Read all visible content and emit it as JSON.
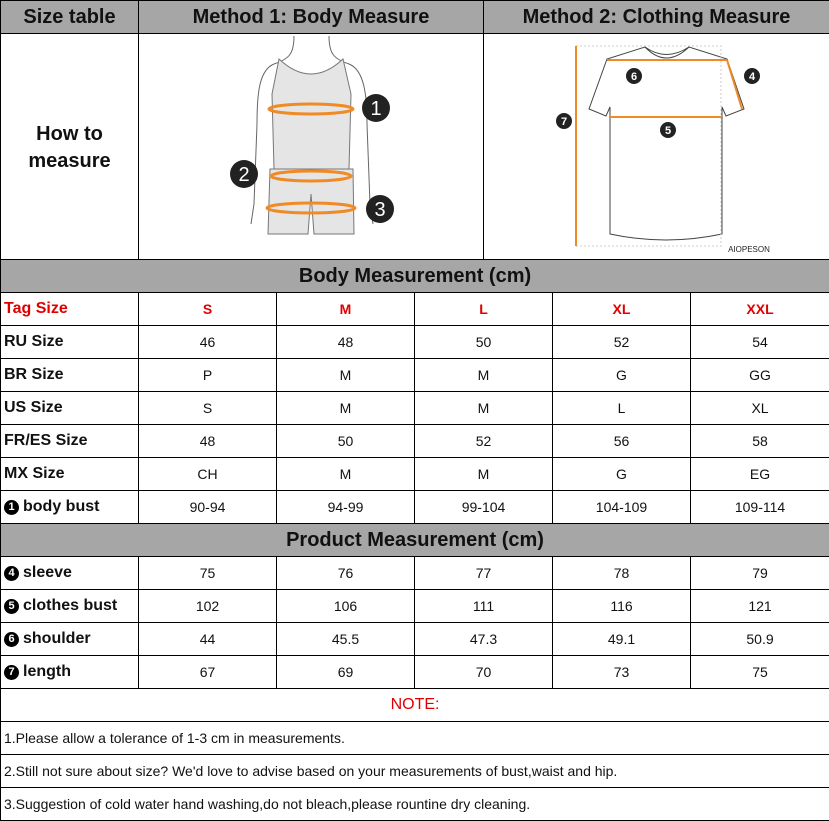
{
  "header": {
    "col1": "Size table",
    "col2": "Method 1: Body  Measure",
    "col3": "Method 2: Clothing Measure"
  },
  "how_to": "How to measure",
  "diagram": {
    "body_markers": [
      "1",
      "2",
      "3"
    ],
    "shirt_markers": [
      "6",
      "4",
      "7",
      "5"
    ],
    "brand": "AIOPESON",
    "accent": "#f08a24"
  },
  "body_section": "Body Measurement (cm)",
  "product_section": "Product Measurement (cm)",
  "tag_row": {
    "label": "Tag Size",
    "values": [
      "S",
      "M",
      "L",
      "XL",
      "XXL"
    ]
  },
  "body_rows": [
    {
      "label": "RU Size",
      "values": [
        "46",
        "48",
        "50",
        "52",
        "54"
      ]
    },
    {
      "label": "BR Size",
      "values": [
        "P",
        "M",
        "M",
        "G",
        "GG"
      ]
    },
    {
      "label": "US Size",
      "values": [
        "S",
        "M",
        "M",
        "L",
        "XL"
      ]
    },
    {
      "label": "FR/ES Size",
      "values": [
        "48",
        "50",
        "52",
        "56",
        "58"
      ]
    },
    {
      "label": "MX Size",
      "values": [
        "CH",
        "M",
        "M",
        "G",
        "EG"
      ]
    },
    {
      "bullet": "1",
      "label": "body bust",
      "values": [
        "90-94",
        "94-99",
        "99-104",
        "104-109",
        "109-114"
      ]
    }
  ],
  "product_rows": [
    {
      "bullet": "4",
      "label": "sleeve",
      "values": [
        "75",
        "76",
        "77",
        "78",
        "79"
      ]
    },
    {
      "bullet": "5",
      "label": "clothes bust",
      "values": [
        "102",
        "106",
        "111",
        "116",
        "121"
      ]
    },
    {
      "bullet": "6",
      "label": "shoulder",
      "values": [
        "44",
        "45.5",
        "47.3",
        "49.1",
        "50.9"
      ]
    },
    {
      "bullet": "7",
      "label": "length",
      "values": [
        "67",
        "69",
        "70",
        "73",
        "75"
      ]
    }
  ],
  "note_title": "NOTE:",
  "notes": [
    "1.Please allow a tolerance of 1-3 cm in measurements.",
    "2.Still not sure about size? We'd love to advise based on your measurements of bust,waist and hip.",
    "3.Suggestion of cold water hand washing,do not bleach,please rountine dry cleaning."
  ]
}
